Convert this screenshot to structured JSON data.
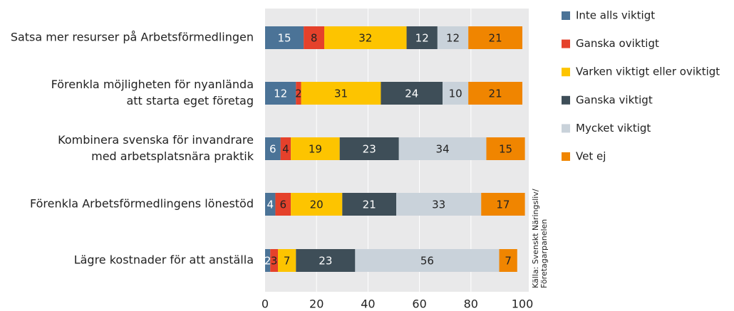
{
  "chart_data": {
    "type": "stacked-bar-horizontal",
    "categories": [
      [
        "Satsa mer resurser på Arbetsförmedlingen"
      ],
      [
        "Förenkla möjligheten för nyanlända",
        "att starta eget företag"
      ],
      [
        "Kombinera svenska för invandrare",
        "med arbetsplatsnära praktik"
      ],
      [
        "Förenkla Arbetsförmedlingens lönestöd"
      ],
      [
        "Lägre kostnader för att anställa"
      ]
    ],
    "series": [
      {
        "name": "Inte alls viktigt",
        "color": "#4b7397",
        "values": [
          15,
          12,
          6,
          4,
          2
        ]
      },
      {
        "name": "Ganska oviktigt",
        "color": "#e5412b",
        "values": [
          8,
          2,
          4,
          6,
          3
        ]
      },
      {
        "name": "Varken viktigt eller oviktigt",
        "color": "#fdc400",
        "values": [
          32,
          31,
          19,
          20,
          7
        ]
      },
      {
        "name": "Ganska viktigt",
        "color": "#3e4e58",
        "values": [
          12,
          24,
          23,
          21,
          23
        ]
      },
      {
        "name": "Mycket viktigt",
        "color": "#c9d2da",
        "values": [
          12,
          10,
          34,
          33,
          56
        ]
      },
      {
        "name": "Vet ej",
        "color": "#f08500",
        "values": [
          21,
          21,
          15,
          17,
          7
        ]
      }
    ],
    "xlim": [
      0,
      100
    ],
    "xticks": [
      0,
      20,
      40,
      60,
      80,
      100
    ],
    "grid": true,
    "source": [
      "Källa: Svenskt Näringsliv/",
      "Företagarpanelen"
    ]
  }
}
